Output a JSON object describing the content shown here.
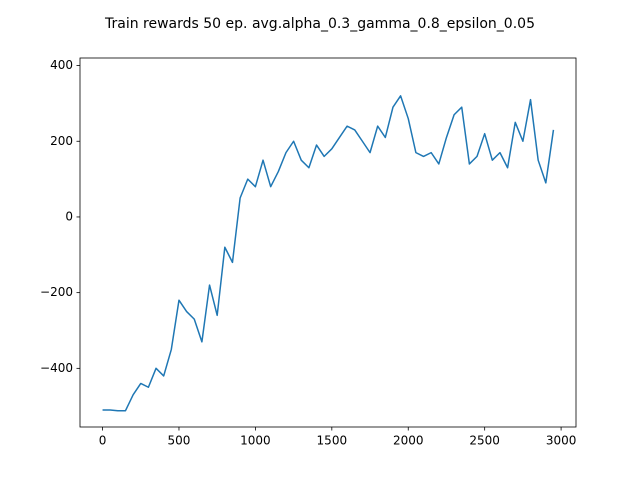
{
  "chart_data": {
    "type": "line",
    "title": "Train rewards 50 ep. avg.alpha_0.3_gamma_0.8_epsilon_0.05",
    "color": "#1f77b4",
    "x": [
      0,
      50,
      100,
      150,
      200,
      250,
      300,
      350,
      400,
      450,
      500,
      550,
      600,
      650,
      700,
      750,
      800,
      850,
      900,
      950,
      1000,
      1050,
      1100,
      1150,
      1200,
      1250,
      1300,
      1350,
      1400,
      1450,
      1500,
      1550,
      1600,
      1650,
      1700,
      1750,
      1800,
      1850,
      1900,
      1950,
      2000,
      2050,
      2100,
      2150,
      2200,
      2250,
      2300,
      2350,
      2400,
      2450,
      2500,
      2550,
      2600,
      2650,
      2700,
      2750,
      2800,
      2850,
      2900,
      2950
    ],
    "values": [
      -510,
      -510,
      -512,
      -512,
      -470,
      -440,
      -450,
      -400,
      -420,
      -350,
      -220,
      -250,
      -270,
      -330,
      -180,
      -260,
      -80,
      -120,
      50,
      100,
      80,
      150,
      80,
      120,
      170,
      200,
      150,
      130,
      190,
      160,
      180,
      210,
      240,
      230,
      200,
      170,
      240,
      210,
      290,
      320,
      260,
      170,
      160,
      170,
      140,
      210,
      270,
      290,
      140,
      160,
      220,
      150,
      170,
      130,
      250,
      200,
      310,
      150,
      90,
      230
    ],
    "xlim": [
      -147.5,
      3097.5
    ],
    "ylim": [
      -555,
      420
    ],
    "xticks": [
      0,
      500,
      1000,
      1500,
      2000,
      2500,
      3000
    ],
    "yticks": [
      {
        "value": -400,
        "label": "−400"
      },
      {
        "value": -200,
        "label": "−200"
      },
      0,
      200,
      400
    ]
  }
}
